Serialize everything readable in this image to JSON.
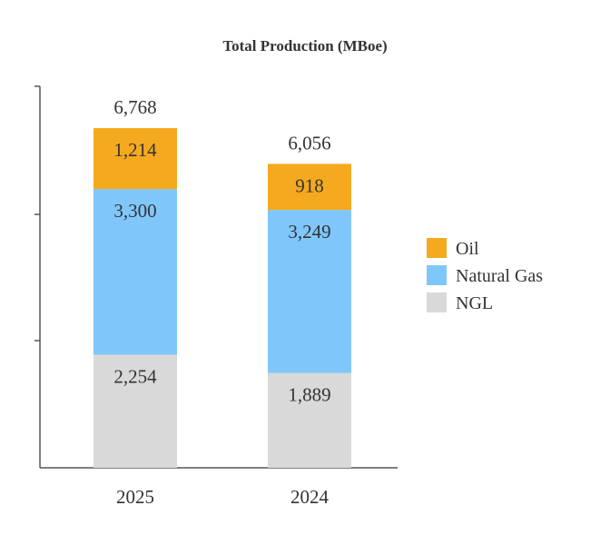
{
  "chart_data": {
    "type": "bar",
    "stacked": true,
    "title": "Total Production (MBoe)",
    "categories": [
      "2025",
      "2024"
    ],
    "series": [
      {
        "name": "NGL",
        "values": [
          2254,
          1889
        ],
        "color": "#d9d9d9"
      },
      {
        "name": "Natural Gas",
        "values": [
          3300,
          3249
        ],
        "color": "#7fc7fb"
      },
      {
        "name": "Oil",
        "values": [
          1214,
          918
        ],
        "color": "#f5a91f"
      }
    ],
    "totals": [
      6768,
      6056
    ],
    "value_labels": {
      "NGL": [
        "2,254",
        "1,889"
      ],
      "Natural Gas": [
        "3,300",
        "3,249"
      ],
      "Oil": [
        "1,214",
        "918"
      ]
    },
    "total_labels": [
      "6,768",
      "6,056"
    ],
    "legend_order": [
      "Oil",
      "Natural Gas",
      "NGL"
    ],
    "legend_position": "right",
    "ylim": [
      0,
      9000
    ],
    "grid": false
  }
}
